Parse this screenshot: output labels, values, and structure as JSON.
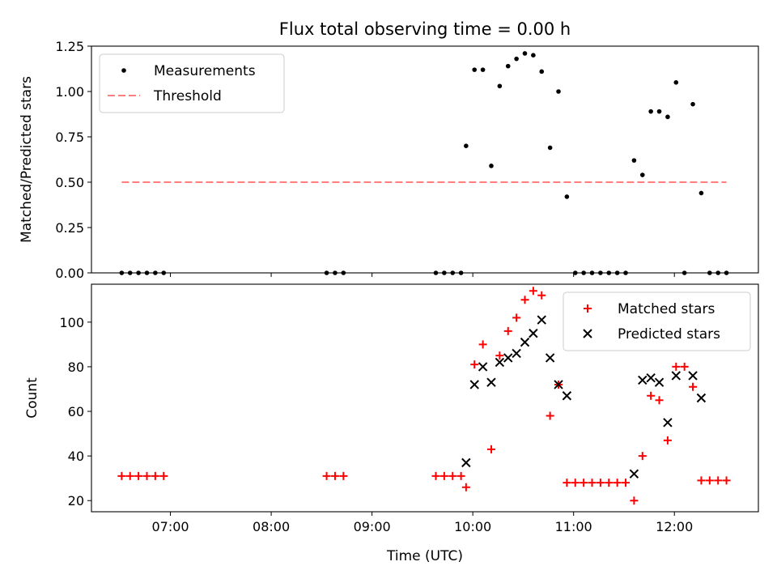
{
  "chart_data": [
    {
      "type": "scatter",
      "title": "Flux total observing time = 0.00 h",
      "xlabel": "",
      "ylabel": "Matched/Predicted stars",
      "xlim": [
        "06:13",
        "12:50"
      ],
      "ylim": [
        0,
        1.25
      ],
      "yticks": [
        0,
        0.25,
        0.5,
        0.75,
        1.0,
        1.25
      ],
      "ytick_labels": [
        "0.00",
        "0.25",
        "0.50",
        "0.75",
        "1.00",
        "1.25"
      ],
      "legend_position": "top-left",
      "grid": false,
      "series": [
        {
          "name": "Measurements",
          "marker": "dot",
          "color": "#000000",
          "points": [
            [
              "06:31",
              0
            ],
            [
              "06:36",
              0
            ],
            [
              "06:41",
              0
            ],
            [
              "06:46",
              0
            ],
            [
              "06:51",
              0
            ],
            [
              "06:56",
              0
            ],
            [
              "08:33",
              0
            ],
            [
              "08:38",
              0
            ],
            [
              "08:43",
              0
            ],
            [
              "09:38",
              0
            ],
            [
              "09:43",
              0
            ],
            [
              "09:48",
              0
            ],
            [
              "09:53",
              0
            ],
            [
              "09:56",
              0.7
            ],
            [
              "10:01",
              1.12
            ],
            [
              "10:06",
              1.12
            ],
            [
              "10:11",
              0.59
            ],
            [
              "10:16",
              1.03
            ],
            [
              "10:21",
              1.14
            ],
            [
              "10:26",
              1.18
            ],
            [
              "10:31",
              1.21
            ],
            [
              "10:36",
              1.2
            ],
            [
              "10:41",
              1.11
            ],
            [
              "10:46",
              0.69
            ],
            [
              "10:51",
              1.0
            ],
            [
              "10:56",
              0.42
            ],
            [
              "11:01",
              0
            ],
            [
              "11:06",
              0
            ],
            [
              "11:11",
              0
            ],
            [
              "11:16",
              0
            ],
            [
              "11:21",
              0
            ],
            [
              "11:26",
              0
            ],
            [
              "11:31",
              0
            ],
            [
              "11:36",
              0.62
            ],
            [
              "11:41",
              0.54
            ],
            [
              "11:46",
              0.89
            ],
            [
              "11:51",
              0.89
            ],
            [
              "11:56",
              0.86
            ],
            [
              "12:01",
              1.05
            ],
            [
              "12:06",
              0
            ],
            [
              "12:11",
              0.93
            ],
            [
              "12:16",
              0.44
            ],
            [
              "12:21",
              0
            ],
            [
              "12:26",
              0
            ],
            [
              "12:31",
              0
            ]
          ]
        },
        {
          "name": "Threshold",
          "style": "dashed",
          "color": "#ff7f7f",
          "points": [
            [
              "06:31",
              0.5
            ],
            [
              "12:31",
              0.5
            ]
          ]
        }
      ]
    },
    {
      "type": "scatter",
      "title": "",
      "xlabel": "Time (UTC)",
      "ylabel": "Count",
      "xlim": [
        "06:13",
        "12:50"
      ],
      "ylim": [
        15,
        117
      ],
      "xticks": [
        "07:00",
        "08:00",
        "09:00",
        "10:00",
        "11:00",
        "12:00"
      ],
      "yticks": [
        20,
        40,
        60,
        80,
        100
      ],
      "ytick_labels": [
        "20",
        "40",
        "60",
        "80",
        "100"
      ],
      "legend_position": "top-right",
      "grid": false,
      "series": [
        {
          "name": "Matched stars",
          "marker": "plus",
          "color": "#ff0000",
          "points": [
            [
              "06:31",
              31
            ],
            [
              "06:36",
              31
            ],
            [
              "06:41",
              31
            ],
            [
              "06:46",
              31
            ],
            [
              "06:51",
              31
            ],
            [
              "06:56",
              31
            ],
            [
              "08:33",
              31
            ],
            [
              "08:38",
              31
            ],
            [
              "08:43",
              31
            ],
            [
              "09:38",
              31
            ],
            [
              "09:43",
              31
            ],
            [
              "09:48",
              31
            ],
            [
              "09:53",
              31
            ],
            [
              "09:56",
              26
            ],
            [
              "10:01",
              81
            ],
            [
              "10:06",
              90
            ],
            [
              "10:11",
              43
            ],
            [
              "10:16",
              85
            ],
            [
              "10:21",
              96
            ],
            [
              "10:26",
              102
            ],
            [
              "10:31",
              110
            ],
            [
              "10:36",
              114
            ],
            [
              "10:41",
              112
            ],
            [
              "10:46",
              58
            ],
            [
              "10:51",
              72
            ],
            [
              "10:56",
              28
            ],
            [
              "11:01",
              28
            ],
            [
              "11:06",
              28
            ],
            [
              "11:11",
              28
            ],
            [
              "11:16",
              28
            ],
            [
              "11:21",
              28
            ],
            [
              "11:26",
              28
            ],
            [
              "11:31",
              28
            ],
            [
              "11:36",
              20
            ],
            [
              "11:41",
              40
            ],
            [
              "11:46",
              67
            ],
            [
              "11:51",
              65
            ],
            [
              "11:56",
              47
            ],
            [
              "12:01",
              80
            ],
            [
              "12:06",
              80
            ],
            [
              "12:11",
              71
            ],
            [
              "12:16",
              29
            ],
            [
              "12:21",
              29
            ],
            [
              "12:26",
              29
            ],
            [
              "12:31",
              29
            ]
          ]
        },
        {
          "name": "Predicted stars",
          "marker": "x",
          "color": "#000000",
          "points": [
            [
              "09:56",
              37
            ],
            [
              "10:01",
              72
            ],
            [
              "10:06",
              80
            ],
            [
              "10:11",
              73
            ],
            [
              "10:16",
              82
            ],
            [
              "10:21",
              84
            ],
            [
              "10:26",
              86
            ],
            [
              "10:31",
              91
            ],
            [
              "10:36",
              95
            ],
            [
              "10:41",
              101
            ],
            [
              "10:46",
              84
            ],
            [
              "10:51",
              72
            ],
            [
              "10:56",
              67
            ],
            [
              "11:36",
              32
            ],
            [
              "11:41",
              74
            ],
            [
              "11:46",
              75
            ],
            [
              "11:51",
              73
            ],
            [
              "11:56",
              55
            ],
            [
              "12:01",
              76
            ],
            [
              "12:11",
              76
            ],
            [
              "12:16",
              66
            ]
          ]
        }
      ]
    }
  ]
}
